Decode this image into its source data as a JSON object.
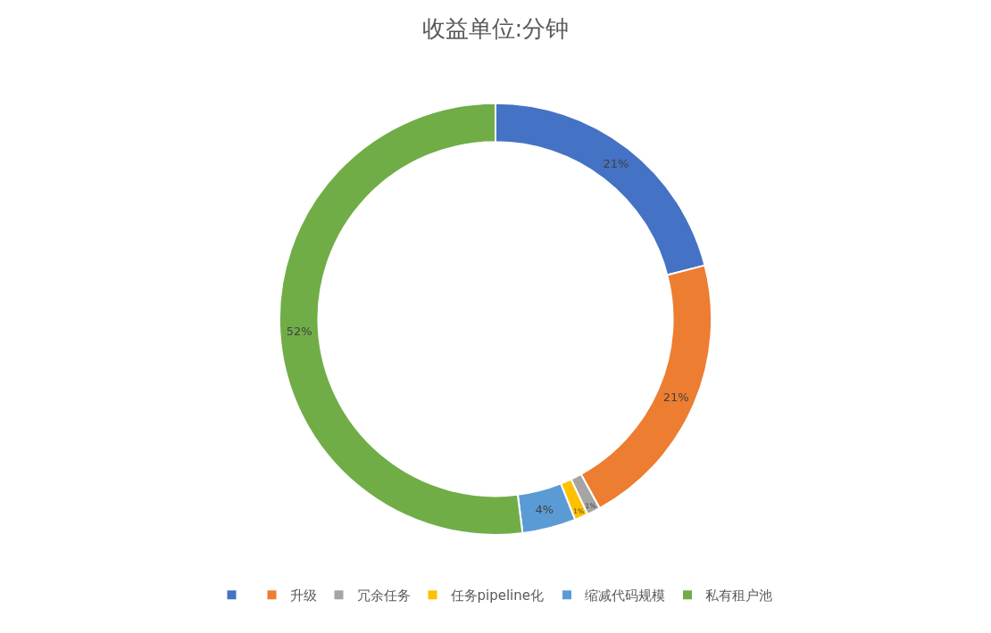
{
  "chart_data": {
    "type": "donut",
    "title": "收益单位:分钟",
    "categories": [
      null,
      "升级",
      "冗余任务",
      "任务pipeline化",
      "缩减代码规模",
      "私有租户池"
    ],
    "values": [
      21,
      21,
      1,
      1,
      4,
      52
    ],
    "value_labels": [
      "21%",
      "21%",
      "1%",
      "1%",
      "4%",
      "52%"
    ],
    "colors": [
      "#4472c4",
      "#ed7d31",
      "#a5a5a5",
      "#ffc000",
      "#5b9bd5",
      "#70ad47"
    ],
    "legend": "bottom"
  }
}
